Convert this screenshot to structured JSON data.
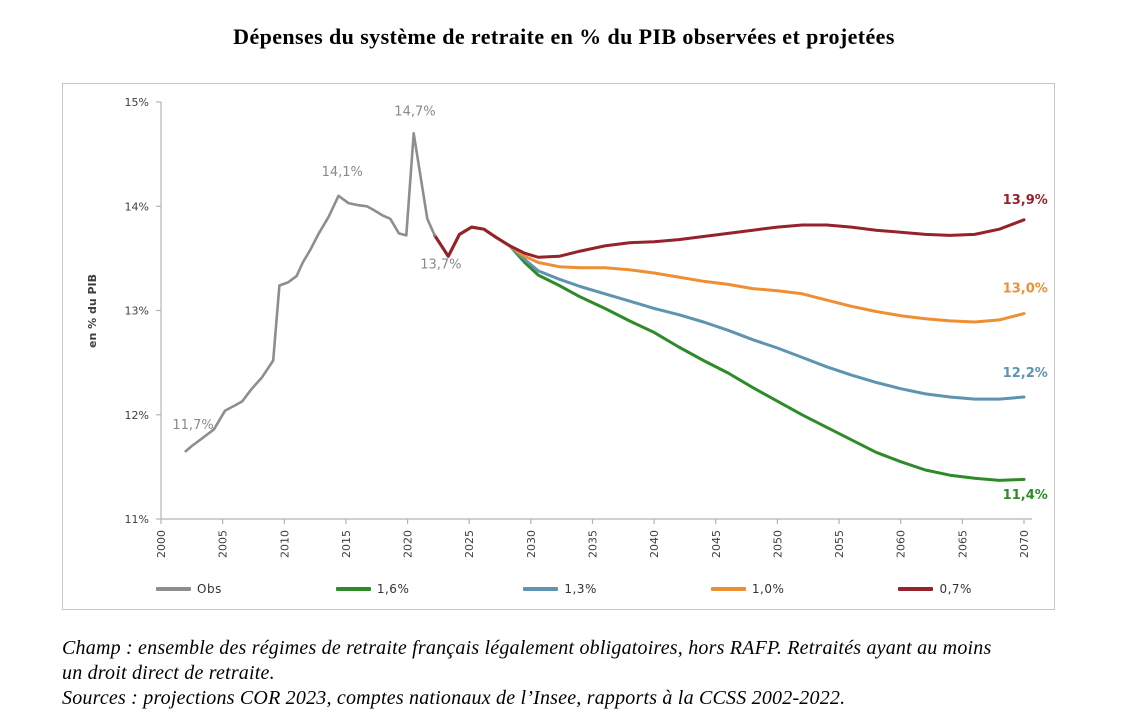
{
  "title": "Dépenses du système de retraite en % du PIB observées et projetées",
  "chart_data": {
    "type": "line",
    "title": "Dépenses du système de retraite en % du PIB observées et projetées",
    "xlabel": "",
    "ylabel": "en % du PIB",
    "xlim": [
      2000,
      2070
    ],
    "ylim": [
      11,
      15
    ],
    "grid": false,
    "legend_position": "bottom",
    "y_ticks": [
      {
        "value": 15,
        "label": "15%"
      },
      {
        "value": 14,
        "label": "14%"
      },
      {
        "value": 13,
        "label": "13%"
      },
      {
        "value": 12,
        "label": "12%"
      },
      {
        "value": 11,
        "label": "11%"
      }
    ],
    "x_ticks": [
      {
        "value": 2000,
        "label": "2000"
      },
      {
        "value": 2005,
        "label": "2005"
      },
      {
        "value": 2010,
        "label": "2010"
      },
      {
        "value": 2015,
        "label": "2015"
      },
      {
        "value": 2020,
        "label": "2020"
      },
      {
        "value": 2025,
        "label": "2025"
      },
      {
        "value": 2030,
        "label": "2030"
      },
      {
        "value": 2035,
        "label": "2035"
      },
      {
        "value": 2040,
        "label": "2040"
      },
      {
        "value": 2045,
        "label": "2045"
      },
      {
        "value": 2050,
        "label": "2050"
      },
      {
        "value": 2055,
        "label": "2055"
      },
      {
        "value": 2060,
        "label": "2060"
      },
      {
        "value": 2065,
        "label": "2065"
      },
      {
        "value": 2070,
        "label": "2070"
      }
    ],
    "series": [
      {
        "id": "scenario-1-6",
        "name": "1,6%",
        "color": "#2E8B29",
        "width": 3,
        "points": [
          [
            2022.2,
            13.72
          ],
          [
            2023.3,
            13.52
          ],
          [
            2024.2,
            13.73
          ],
          [
            2025.2,
            13.8
          ],
          [
            2026.2,
            13.78
          ],
          [
            2027.2,
            13.7
          ],
          [
            2028.3,
            13.62
          ],
          [
            2029.5,
            13.46
          ],
          [
            2030.6,
            13.34
          ],
          [
            2032.3,
            13.24
          ],
          [
            2034,
            13.13
          ],
          [
            2036,
            13.02
          ],
          [
            2038,
            12.9
          ],
          [
            2040,
            12.79
          ],
          [
            2042,
            12.65
          ],
          [
            2044,
            12.52
          ],
          [
            2046,
            12.4
          ],
          [
            2048,
            12.26
          ],
          [
            2050,
            12.13
          ],
          [
            2052,
            12.0
          ],
          [
            2054,
            11.88
          ],
          [
            2056,
            11.76
          ],
          [
            2058,
            11.64
          ],
          [
            2060,
            11.55
          ],
          [
            2062,
            11.47
          ],
          [
            2064,
            11.42
          ],
          [
            2066,
            11.39
          ],
          [
            2068,
            11.37
          ],
          [
            2070,
            11.38
          ]
        ]
      },
      {
        "id": "scenario-1-3",
        "name": "1,3%",
        "color": "#5E94B0",
        "width": 3,
        "points": [
          [
            2022.2,
            13.72
          ],
          [
            2023.3,
            13.52
          ],
          [
            2024.2,
            13.73
          ],
          [
            2025.2,
            13.8
          ],
          [
            2026.2,
            13.78
          ],
          [
            2027.2,
            13.7
          ],
          [
            2028.3,
            13.62
          ],
          [
            2029.5,
            13.49
          ],
          [
            2030.6,
            13.38
          ],
          [
            2032.3,
            13.3
          ],
          [
            2034,
            13.23
          ],
          [
            2036,
            13.16
          ],
          [
            2038,
            13.09
          ],
          [
            2040,
            13.02
          ],
          [
            2042,
            12.96
          ],
          [
            2044,
            12.89
          ],
          [
            2046,
            12.81
          ],
          [
            2048,
            12.72
          ],
          [
            2050,
            12.64
          ],
          [
            2052,
            12.55
          ],
          [
            2054,
            12.46
          ],
          [
            2056,
            12.38
          ],
          [
            2058,
            12.31
          ],
          [
            2060,
            12.25
          ],
          [
            2062,
            12.2
          ],
          [
            2064,
            12.17
          ],
          [
            2066,
            12.15
          ],
          [
            2068,
            12.15
          ],
          [
            2070,
            12.17
          ]
        ]
      },
      {
        "id": "scenario-1-0",
        "name": "1,0%",
        "color": "#EE8F33",
        "width": 3,
        "points": [
          [
            2022.2,
            13.72
          ],
          [
            2023.3,
            13.52
          ],
          [
            2024.2,
            13.73
          ],
          [
            2025.2,
            13.8
          ],
          [
            2026.2,
            13.78
          ],
          [
            2027.2,
            13.7
          ],
          [
            2028.3,
            13.62
          ],
          [
            2029.5,
            13.52
          ],
          [
            2030.6,
            13.46
          ],
          [
            2032.3,
            13.42
          ],
          [
            2034,
            13.41
          ],
          [
            2036,
            13.41
          ],
          [
            2038,
            13.39
          ],
          [
            2040,
            13.36
          ],
          [
            2042,
            13.32
          ],
          [
            2044,
            13.28
          ],
          [
            2046,
            13.25
          ],
          [
            2048,
            13.21
          ],
          [
            2050,
            13.19
          ],
          [
            2052,
            13.16
          ],
          [
            2054,
            13.1
          ],
          [
            2056,
            13.04
          ],
          [
            2058,
            12.99
          ],
          [
            2060,
            12.95
          ],
          [
            2062,
            12.92
          ],
          [
            2064,
            12.9
          ],
          [
            2066,
            12.89
          ],
          [
            2068,
            12.91
          ],
          [
            2070,
            12.97
          ]
        ]
      },
      {
        "id": "scenario-0-7",
        "name": "0,7%",
        "color": "#96222B",
        "width": 3,
        "points": [
          [
            2022.2,
            13.72
          ],
          [
            2023.3,
            13.52
          ],
          [
            2024.2,
            13.73
          ],
          [
            2025.2,
            13.8
          ],
          [
            2026.2,
            13.78
          ],
          [
            2027.2,
            13.7
          ],
          [
            2028.3,
            13.62
          ],
          [
            2029.5,
            13.55
          ],
          [
            2030.6,
            13.51
          ],
          [
            2032.3,
            13.52
          ],
          [
            2034,
            13.57
          ],
          [
            2036,
            13.62
          ],
          [
            2038,
            13.65
          ],
          [
            2040,
            13.66
          ],
          [
            2042,
            13.68
          ],
          [
            2044,
            13.71
          ],
          [
            2046,
            13.74
          ],
          [
            2048,
            13.77
          ],
          [
            2050,
            13.8
          ],
          [
            2052,
            13.82
          ],
          [
            2054,
            13.82
          ],
          [
            2056,
            13.8
          ],
          [
            2058,
            13.77
          ],
          [
            2060,
            13.75
          ],
          [
            2062,
            13.73
          ],
          [
            2064,
            13.72
          ],
          [
            2066,
            13.73
          ],
          [
            2068,
            13.78
          ],
          [
            2070,
            13.87
          ]
        ]
      },
      {
        "id": "obs",
        "name": "Obs",
        "color": "#8E8E8E",
        "width": 2.6,
        "points": [
          [
            2002,
            11.65
          ],
          [
            2002.5,
            11.7
          ],
          [
            2003.3,
            11.77
          ],
          [
            2004.3,
            11.86
          ],
          [
            2005.2,
            12.04
          ],
          [
            2006,
            12.09
          ],
          [
            2006.6,
            12.13
          ],
          [
            2007.3,
            12.24
          ],
          [
            2008.2,
            12.36
          ],
          [
            2009.1,
            12.52
          ],
          [
            2009.6,
            13.24
          ],
          [
            2010.3,
            13.27
          ],
          [
            2011,
            13.33
          ],
          [
            2011.5,
            13.46
          ],
          [
            2012.1,
            13.58
          ],
          [
            2012.8,
            13.74
          ],
          [
            2013.6,
            13.9
          ],
          [
            2014.4,
            14.1
          ],
          [
            2015.2,
            14.03
          ],
          [
            2016,
            14.01
          ],
          [
            2016.7,
            14.0
          ],
          [
            2017.3,
            13.96
          ],
          [
            2018,
            13.91
          ],
          [
            2018.6,
            13.88
          ],
          [
            2019.3,
            13.74
          ],
          [
            2019.9,
            13.72
          ],
          [
            2020.5,
            14.7
          ],
          [
            2021.6,
            13.88
          ],
          [
            2022.2,
            13.72
          ]
        ]
      }
    ],
    "annotations": [
      {
        "text": "11,7%",
        "year": 2002.6,
        "value": 11.9,
        "color": "#8a8a8a",
        "bold": false
      },
      {
        "text": "14,1%",
        "year": 2014.7,
        "value": 14.33,
        "color": "#8a8a8a",
        "bold": false
      },
      {
        "text": "14,7%",
        "year": 2020.6,
        "value": 14.91,
        "color": "#8a8a8a",
        "bold": false
      },
      {
        "text": "13,7%",
        "year": 2022.7,
        "value": 13.44,
        "color": "#8a8a8a",
        "bold": false
      },
      {
        "text": "13,9%",
        "year": 2070.1,
        "value": 14.06,
        "color": "#96222B",
        "bold": true
      },
      {
        "text": "13,0%",
        "year": 2070.1,
        "value": 13.21,
        "color": "#EE8F33",
        "bold": true
      },
      {
        "text": "12,2%",
        "year": 2070.1,
        "value": 12.4,
        "color": "#5E94B0",
        "bold": true
      },
      {
        "text": "11,4%",
        "year": 2070.1,
        "value": 11.23,
        "color": "#2E8B29",
        "bold": true
      }
    ]
  },
  "legend": {
    "items": [
      {
        "label": "Obs",
        "color": "#8E8E8E"
      },
      {
        "label": "1,6%",
        "color": "#2E8B29"
      },
      {
        "label": "1,3%",
        "color": "#5E94B0"
      },
      {
        "label": "1,0%",
        "color": "#EE8F33"
      },
      {
        "label": "0,7%",
        "color": "#96222B"
      }
    ]
  },
  "footnotes": {
    "champ_line1": "Champ : ensemble des régimes de retraite français légalement obligatoires, hors RAFP. Retraités ayant au moins",
    "champ_line2": "un droit direct de retraite.",
    "sources": "Sources : projections COR 2023, comptes nationaux de l’Insee, rapports à la CCSS 2002-2022."
  }
}
